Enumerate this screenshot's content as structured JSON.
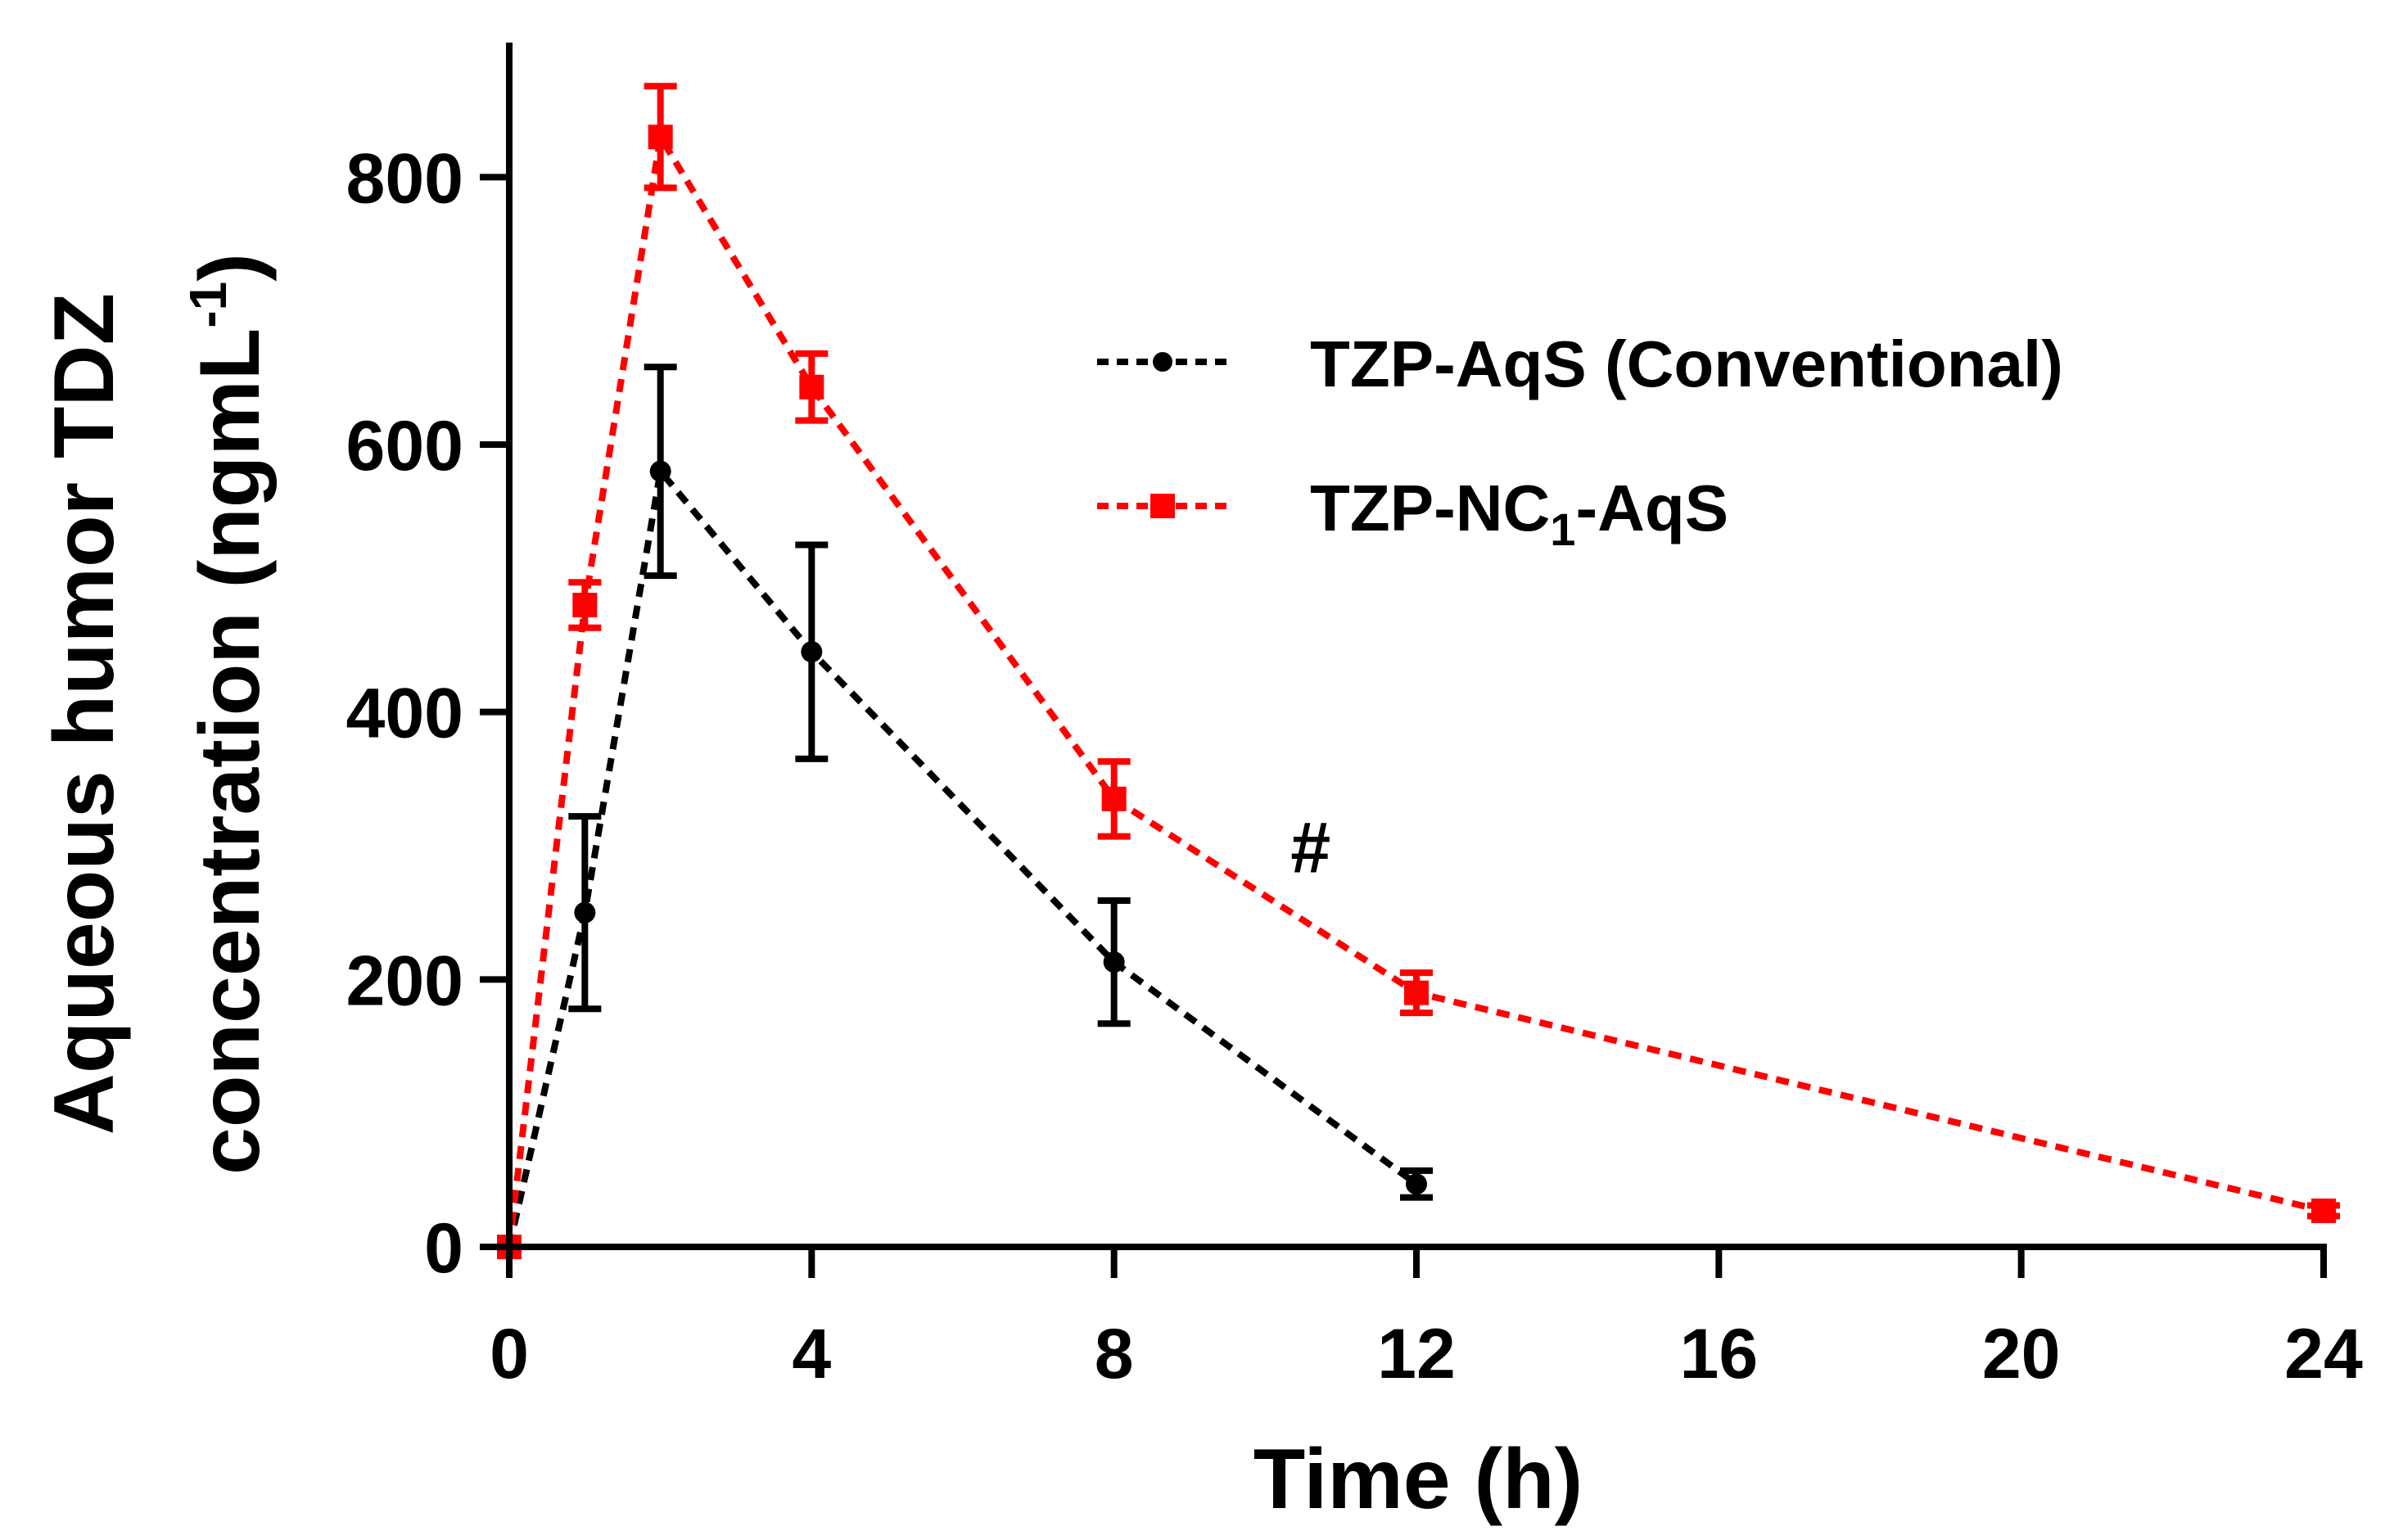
{
  "chart_data": {
    "type": "line",
    "title": "",
    "xlabel": "Time (h)",
    "ylabel_line1": "Aqueous humor TDZ",
    "ylabel_line2": "concentration (ngmL",
    "ylabel_sup": "-1",
    "ylabel_close": ")",
    "xlim": [
      0,
      24
    ],
    "ylim": [
      0,
      900
    ],
    "xticks": [
      0,
      4,
      8,
      12,
      16,
      20,
      24
    ],
    "yticks": [
      0,
      200,
      400,
      600,
      800
    ],
    "grid": false,
    "legend_position": "top-right",
    "series": [
      {
        "name": "TZP-AqS (Conventional)",
        "legend_main": "TZP-AqS (Conventional)",
        "color": "#000000",
        "marker": "circle",
        "x": [
          0,
          1,
          2,
          4,
          8,
          12
        ],
        "y": [
          0,
          250,
          580,
          445,
          213,
          47
        ],
        "err": [
          0,
          72,
          78,
          80,
          46,
          10
        ]
      },
      {
        "name": "TZP-NC1-AqS",
        "legend_main": "TZP-NC",
        "legend_sub": "1",
        "legend_tail": "-AqS",
        "color": "#ff0000",
        "marker": "square",
        "x": [
          0,
          1,
          2,
          4,
          8,
          12,
          24
        ],
        "y": [
          0,
          480,
          830,
          643,
          335,
          190,
          27
        ],
        "err": [
          0,
          17,
          38,
          25,
          28,
          15,
          4
        ]
      }
    ],
    "annotations": [
      {
        "text": "#",
        "x": 10.6,
        "y": 280
      }
    ]
  }
}
